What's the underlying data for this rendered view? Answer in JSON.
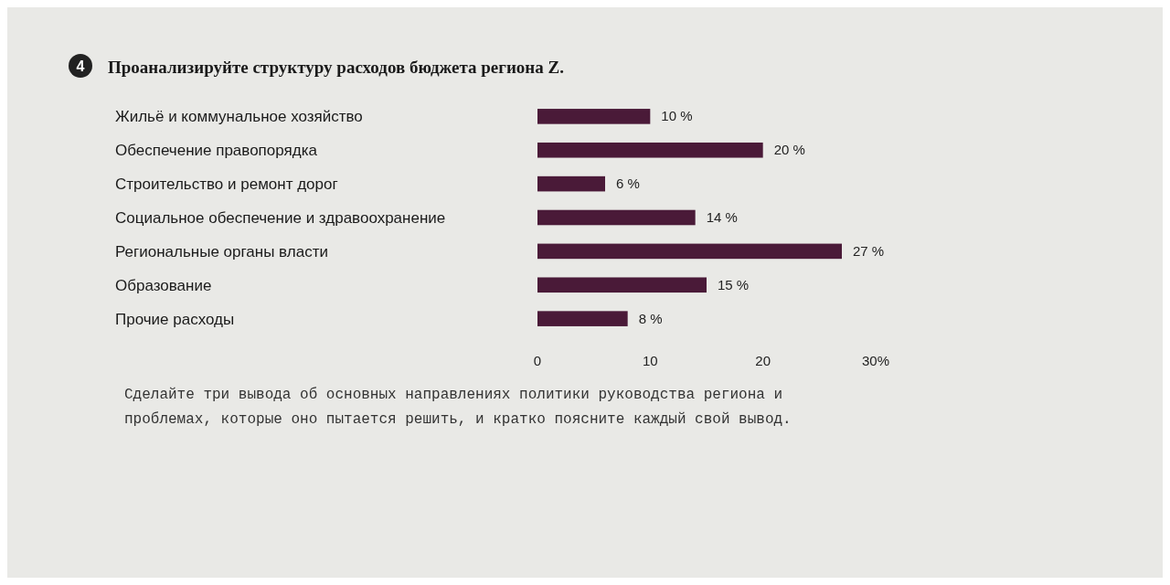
{
  "chart_data": {
    "type": "bar",
    "orientation": "horizontal",
    "title": "Проанализируйте структуру расходов бюджета региона Z.",
    "categories": [
      "Жильё и коммунальное хозяйство",
      "Обеспечение правопорядка",
      "Строительство и ремонт дорог",
      "Социальное обеспечение и здравоохранение",
      "Региональные органы власти",
      "Образование",
      "Прочие расходы"
    ],
    "values": [
      10,
      20,
      6,
      14,
      27,
      15,
      8
    ],
    "value_labels": [
      "10 %",
      "20 %",
      "6 %",
      "14 %",
      "27 %",
      "15 %",
      "8 %"
    ],
    "color": "#4a1a38",
    "xlim": [
      0,
      30
    ],
    "xticks": [
      0,
      10,
      20,
      {
        "value": 30,
        "label": "30%"
      }
    ],
    "annotations": [
      "4",
      "Сделайте три вывода об основных направлениях политики руководства региона и проблемах, которые оно пытается решить, и кратко поясните каждый свой вывод."
    ]
  }
}
